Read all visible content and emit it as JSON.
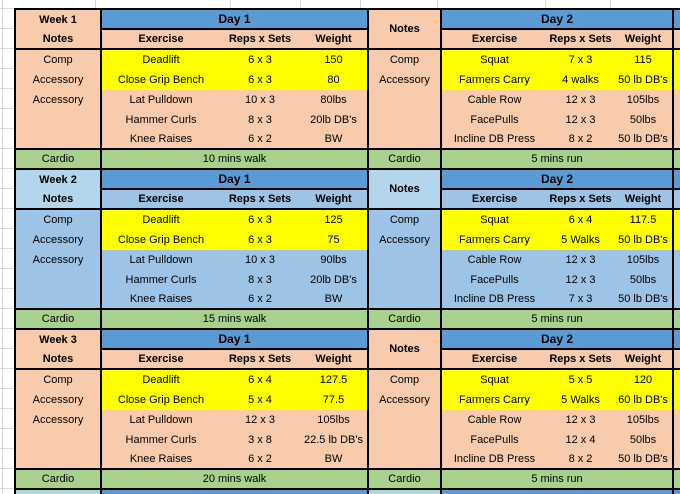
{
  "colors": {
    "day_header": "#5B9BD5",
    "cardio": "#A9D18E",
    "highlight": "#FFFF00",
    "border": "#000000",
    "next_week_label": "#A9DBD2",
    "week_themes": {
      "orange": {
        "label": "#F8CBAD",
        "header": "#F8CBAD",
        "body": "#F8CBAD"
      },
      "blue": {
        "label": "#B4D6EC",
        "header": "#9DC3E6",
        "body": "#9DC3E6"
      }
    }
  },
  "weeks": [
    {
      "label": "Week 1",
      "notes_label": "Notes",
      "theme": "orange",
      "day1": {
        "title": "Day 1",
        "headers": [
          "Exercise",
          "Reps x Sets",
          "Weight"
        ],
        "notes": [
          "Comp",
          "Accessory",
          "Accessory"
        ],
        "rows": [
          {
            "exercise": "Deadlift",
            "reps": "6 x 3",
            "weight": "150",
            "highlight": true
          },
          {
            "exercise": "Close Grip Bench",
            "reps": "6 x 3",
            "weight": "80",
            "highlight": true
          },
          {
            "exercise": "Lat Pulldown",
            "reps": "10 x 3",
            "weight": "80lbs",
            "highlight": false
          },
          {
            "exercise": "Hammer Curls",
            "reps": "8 x 3",
            "weight": "20lb DB's",
            "highlight": false
          },
          {
            "exercise": "Knee Raises",
            "reps": "6 x 2",
            "weight": "BW",
            "highlight": false
          }
        ],
        "cardio_label": "Cardio",
        "cardio_value": "10 mins walk"
      },
      "day2": {
        "title": "Day 2",
        "headers": [
          "Exercise",
          "Reps x Sets",
          "Weight"
        ],
        "notes": [
          "Comp",
          "Accessory"
        ],
        "rows": [
          {
            "exercise": "Squat",
            "reps": "7 x 3",
            "weight": "115",
            "highlight": true
          },
          {
            "exercise": "Farmers Carry",
            "reps": "4 walks",
            "weight": "50 lb DB's",
            "highlight": true
          },
          {
            "exercise": "Cable Row",
            "reps": "12 x 3",
            "weight": "105lbs",
            "highlight": false
          },
          {
            "exercise": "FacePulls",
            "reps": "12 x 3",
            "weight": "50lbs",
            "highlight": false
          },
          {
            "exercise": "Incline DB Press",
            "reps": "8 x 2",
            "weight": "50 lb DB's",
            "highlight": false
          }
        ],
        "cardio_label": "Cardio",
        "cardio_value": "5 mins run"
      }
    },
    {
      "label": "Week 2",
      "notes_label": "Notes",
      "theme": "blue",
      "day1": {
        "title": "Day 1",
        "headers": [
          "Exercise",
          "Reps x Sets",
          "Weight"
        ],
        "notes": [
          "Comp",
          "Accessory",
          "Accessory"
        ],
        "rows": [
          {
            "exercise": "Deadlift",
            "reps": "6 x 3",
            "weight": "125",
            "highlight": true
          },
          {
            "exercise": "Close Grip Bench",
            "reps": "6 x 3",
            "weight": "75",
            "highlight": true
          },
          {
            "exercise": "Lat Pulldown",
            "reps": "10 x 3",
            "weight": "90lbs",
            "highlight": false
          },
          {
            "exercise": "Hammer Curls",
            "reps": "8 x 3",
            "weight": "20lb DB's",
            "highlight": false
          },
          {
            "exercise": "Knee Raises",
            "reps": "6 x 2",
            "weight": "BW",
            "highlight": false
          }
        ],
        "cardio_label": "Cardio",
        "cardio_value": "15 mins walk"
      },
      "day2": {
        "title": "Day 2",
        "headers": [
          "Exercise",
          "Reps x Sets",
          "Weight"
        ],
        "notes": [
          "Comp",
          "Accessory"
        ],
        "rows": [
          {
            "exercise": "Squat",
            "reps": "6 x 4",
            "weight": "117.5",
            "highlight": true
          },
          {
            "exercise": "Farmers Carry",
            "reps": "5 Walks",
            "weight": "50 lb DB's",
            "highlight": true
          },
          {
            "exercise": "Cable Row",
            "reps": "12 x 3",
            "weight": "105lbs",
            "highlight": false
          },
          {
            "exercise": "FacePulls",
            "reps": "12 x 3",
            "weight": "50lbs",
            "highlight": false
          },
          {
            "exercise": "Incline DB Press",
            "reps": "7 x 3",
            "weight": "50 lb DB's",
            "highlight": false
          }
        ],
        "cardio_label": "Cardio",
        "cardio_value": "5 mins run"
      }
    },
    {
      "label": "Week 3",
      "notes_label": "Notes",
      "theme": "orange",
      "day1": {
        "title": "Day 1",
        "headers": [
          "Exercise",
          "Reps x Sets",
          "Weight"
        ],
        "notes": [
          "Comp",
          "Accessory",
          "Accessory"
        ],
        "rows": [
          {
            "exercise": "Deadlift",
            "reps": "6 x 4",
            "weight": "127.5",
            "highlight": true
          },
          {
            "exercise": "Close Grip Bench",
            "reps": "5 x 4",
            "weight": "77.5",
            "highlight": true
          },
          {
            "exercise": "Lat Pulldown",
            "reps": "12 x 3",
            "weight": "105lbs",
            "highlight": false
          },
          {
            "exercise": "Hammer Curls",
            "reps": "3 x 8",
            "weight": "22.5 lb DB's",
            "highlight": false
          },
          {
            "exercise": "Knee Raises",
            "reps": "6 x 2",
            "weight": "BW",
            "highlight": false
          }
        ],
        "cardio_label": "Cardio",
        "cardio_value": "20 mins walk"
      },
      "day2": {
        "title": "Day 2",
        "headers": [
          "Exercise",
          "Reps x Sets",
          "Weight"
        ],
        "notes": [
          "Comp",
          "Accessory"
        ],
        "rows": [
          {
            "exercise": "Squat",
            "reps": "5 x 5",
            "weight": "120",
            "highlight": true
          },
          {
            "exercise": "Farmers Carry",
            "reps": "5 Walks",
            "weight": "60 lb DB's",
            "highlight": true
          },
          {
            "exercise": "Cable Row",
            "reps": "12 x 3",
            "weight": "105lbs",
            "highlight": false
          },
          {
            "exercise": "FacePulls",
            "reps": "12 x 4",
            "weight": "50lbs",
            "highlight": false
          },
          {
            "exercise": "Incline DB Press",
            "reps": "8 x 2",
            "weight": "50 lb DB's",
            "highlight": false
          }
        ],
        "cardio_label": "Cardio",
        "cardio_value": "5 mins run"
      }
    }
  ],
  "next_week_partial": {
    "visible": true
  }
}
